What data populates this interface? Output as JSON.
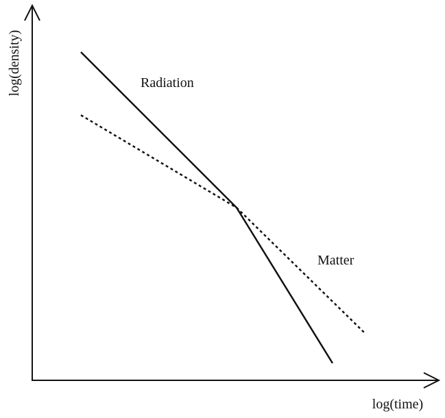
{
  "axes": {
    "y_label": "log(density)",
    "x_label": "log(time)"
  },
  "labels": {
    "radiation": "Radiation",
    "matter": "Matter"
  }
}
